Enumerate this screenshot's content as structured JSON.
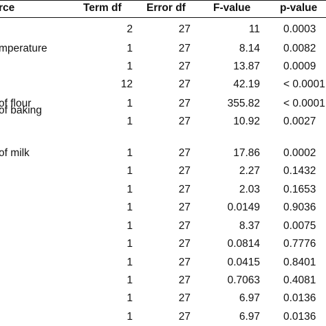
{
  "table": {
    "headers": {
      "source": "rce",
      "term_df": "Term df",
      "error_df": "Error df",
      "f_value": "F-value",
      "p_value": "p-value"
    },
    "rows": [
      {
        "source": "",
        "source_line2": "",
        "term_df": "2",
        "error_df": "27",
        "f_value": "11",
        "p_value": "0.0003"
      },
      {
        "source": "mperature",
        "source_line2": "",
        "term_df": "1",
        "error_df": "27",
        "f_value": "8.14",
        "p_value": "0.0082"
      },
      {
        "source": "",
        "source_line2": "",
        "term_df": "1",
        "error_df": "27",
        "f_value": "13.87",
        "p_value": "0.0009"
      },
      {
        "source": "",
        "source_line2": "",
        "term_df": "12",
        "error_df": "27",
        "f_value": "42.19",
        "p_value": "< 0.0001"
      },
      {
        "source": "of flour",
        "source_line2": "",
        "term_df": "1",
        "error_df": "27",
        "f_value": "355.82",
        "p_value": "< 0.0001"
      },
      {
        "source": "of baking",
        "source_line2": "",
        "term_df": "1",
        "error_df": "27",
        "f_value": "10.92",
        "p_value": "0.0027"
      },
      {
        "source": "of milk",
        "source_line2": "",
        "term_df": "1",
        "error_df": "27",
        "f_value": "17.86",
        "p_value": "0.0002"
      },
      {
        "source": "",
        "source_line2": "",
        "term_df": "1",
        "error_df": "27",
        "f_value": "2.27",
        "p_value": "0.1432"
      },
      {
        "source": "",
        "source_line2": "",
        "term_df": "1",
        "error_df": "27",
        "f_value": "2.03",
        "p_value": "0.1653"
      },
      {
        "source": "",
        "source_line2": "",
        "term_df": "1",
        "error_df": "27",
        "f_value": "0.0149",
        "p_value": "0.9036"
      },
      {
        "source": "",
        "source_line2": "",
        "term_df": "1",
        "error_df": "27",
        "f_value": "8.37",
        "p_value": "0.0075"
      },
      {
        "source": "",
        "source_line2": "",
        "term_df": "1",
        "error_df": "27",
        "f_value": "0.0814",
        "p_value": "0.7776"
      },
      {
        "source": "",
        "source_line2": "",
        "term_df": "1",
        "error_df": "27",
        "f_value": "0.0415",
        "p_value": "0.8401"
      },
      {
        "source": "",
        "source_line2": "",
        "term_df": "1",
        "error_df": "27",
        "f_value": "0.7063",
        "p_value": "0.4081"
      },
      {
        "source": "",
        "source_line2": "",
        "term_df": "1",
        "error_df": "27",
        "f_value": "6.97",
        "p_value": "0.0136"
      },
      {
        "source": "",
        "source_line2": "",
        "term_df": "1",
        "error_df": "27",
        "f_value": "6.97",
        "p_value": "0.0136"
      }
    ]
  }
}
